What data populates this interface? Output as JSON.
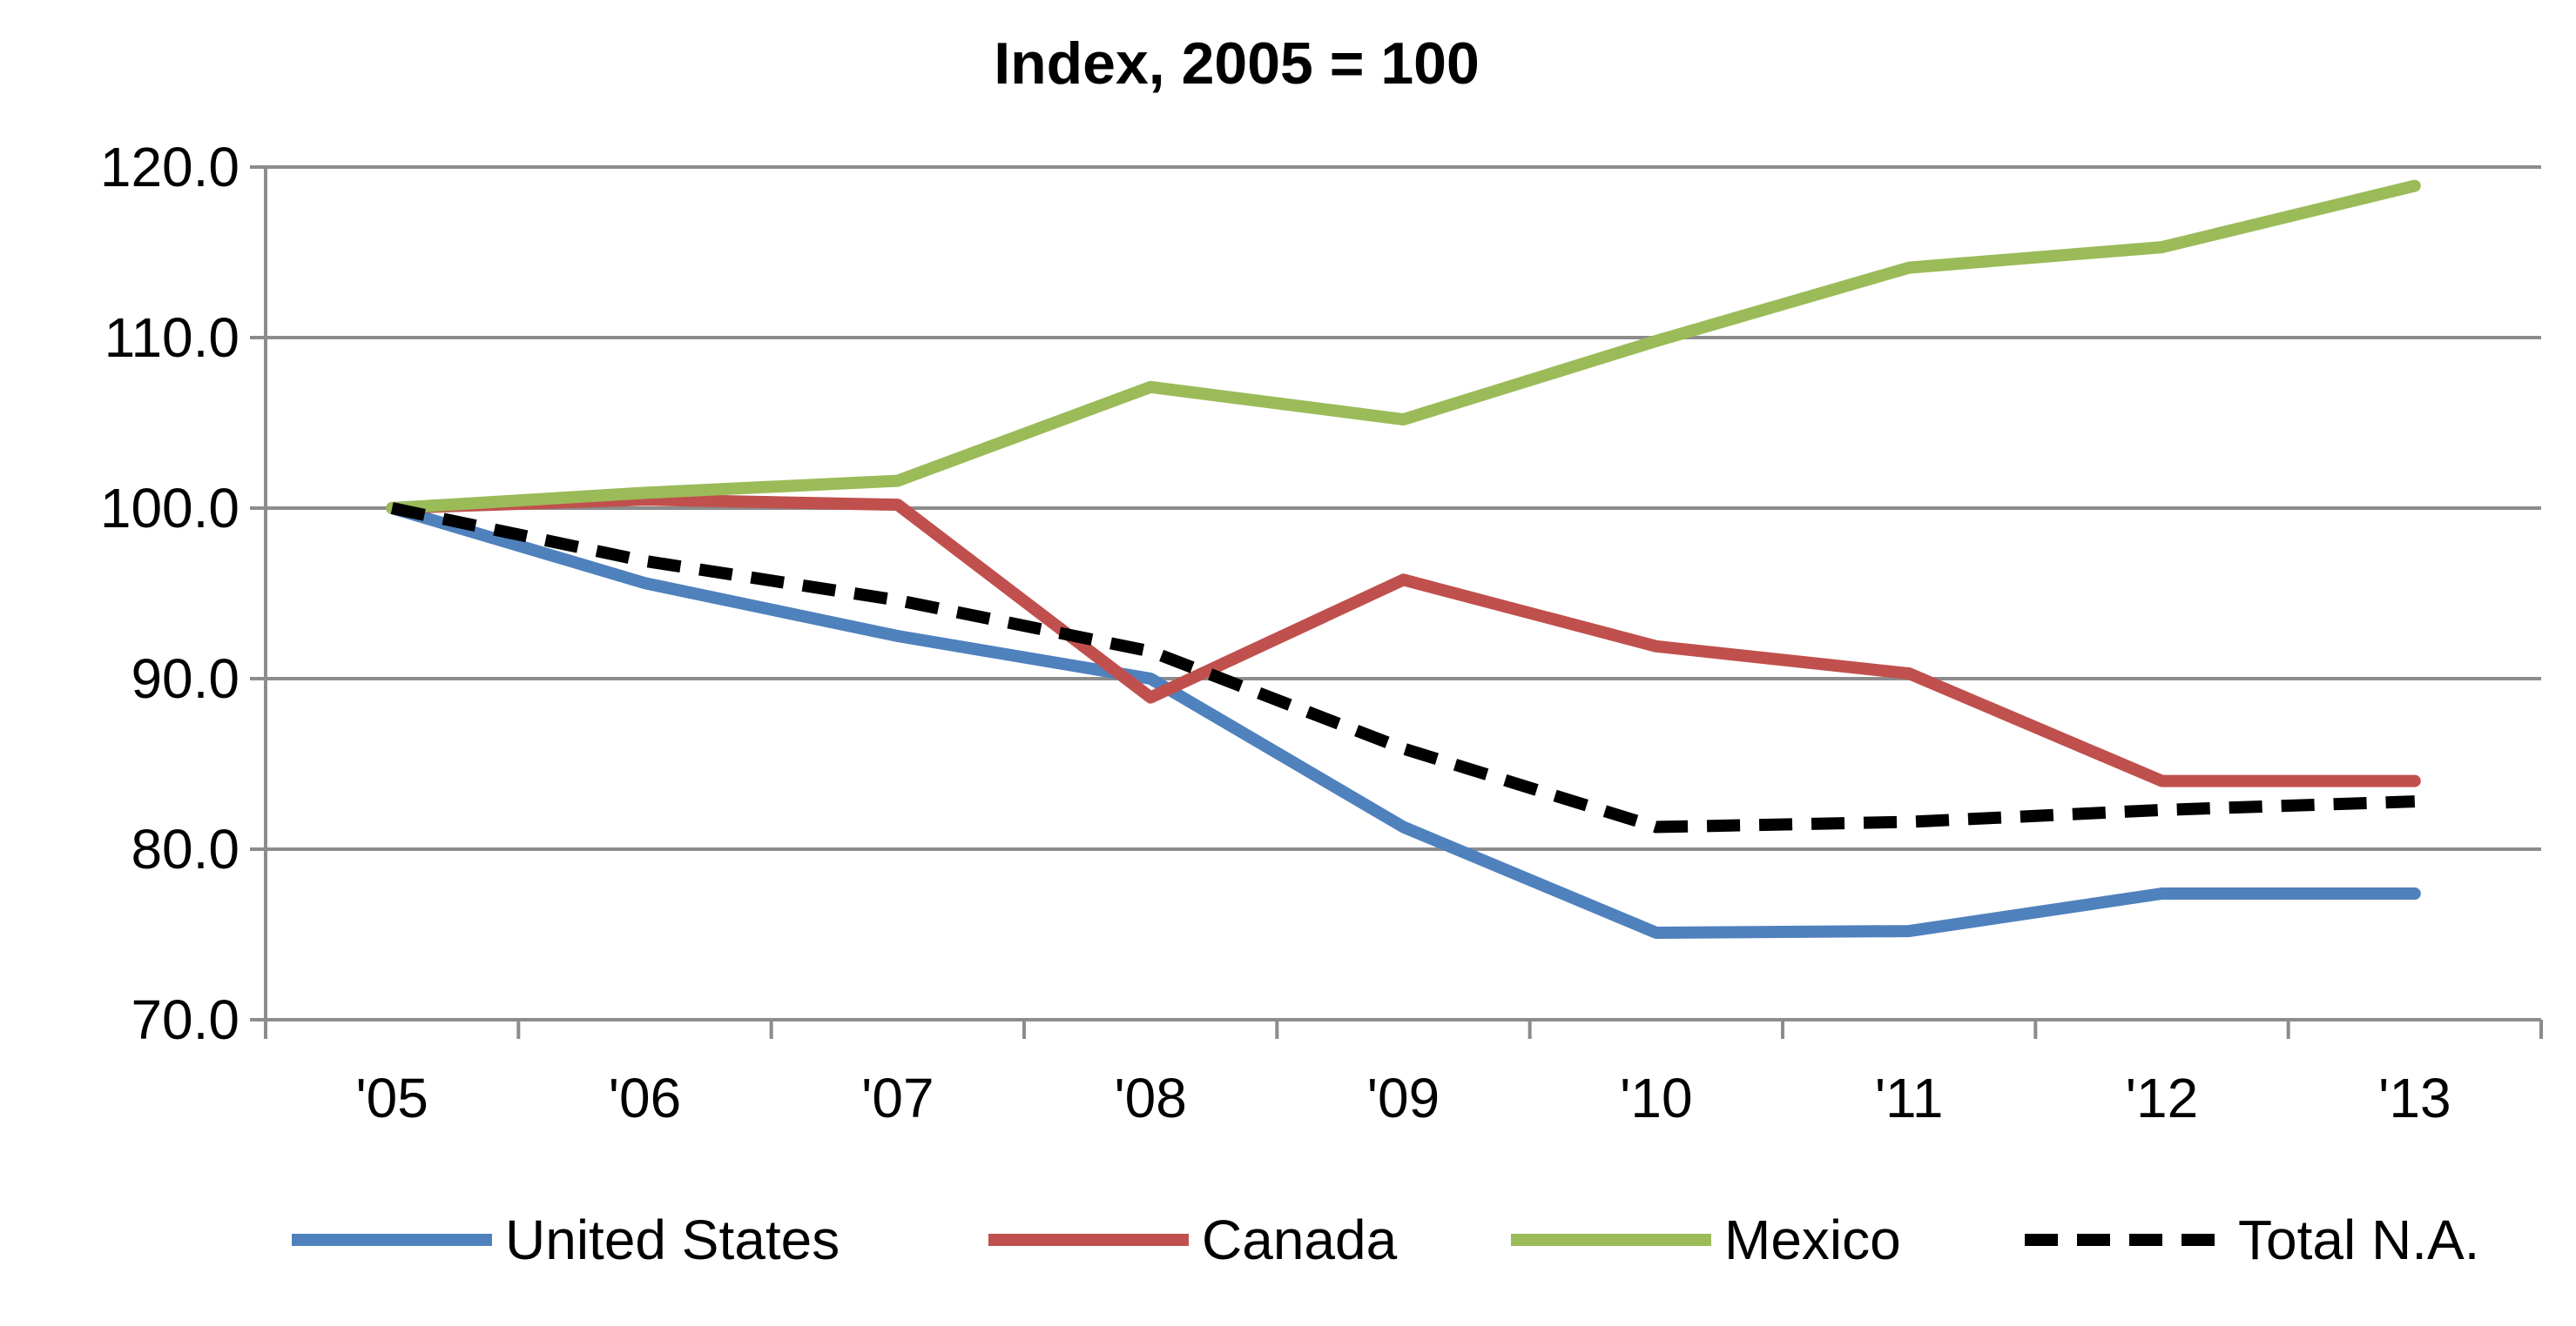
{
  "chart_data": {
    "type": "line",
    "title": "Index, 2005 = 100",
    "xlabel": "",
    "ylabel": "",
    "categories": [
      "'05",
      "'06",
      "'07",
      "'08",
      "'09",
      "'10",
      "'11",
      "'12",
      "'13"
    ],
    "ylim": [
      70,
      120
    ],
    "yticks": [
      "120.0",
      "110.0",
      "100.0",
      "90.0",
      "80.0",
      "70.0"
    ],
    "grid": true,
    "legend_position": "bottom",
    "series": [
      {
        "name": "United States",
        "color": "#4F81BD",
        "dash": "solid",
        "values": [
          100.0,
          95.6,
          92.5,
          90.0,
          81.3,
          75.1,
          75.2,
          77.4,
          77.4
        ]
      },
      {
        "name": "Canada",
        "color": "#C0504D",
        "dash": "solid",
        "values": [
          100.0,
          100.5,
          100.2,
          88.9,
          95.8,
          91.9,
          90.3,
          84.0,
          84.0
        ]
      },
      {
        "name": "Mexico",
        "color": "#9BBB59",
        "dash": "solid",
        "values": [
          100.0,
          100.9,
          101.6,
          107.1,
          105.2,
          109.8,
          114.1,
          115.3,
          118.9
        ]
      },
      {
        "name": "Total N.A.",
        "color": "#000000",
        "dash": "dashed",
        "values": [
          100.0,
          96.9,
          94.6,
          91.6,
          85.9,
          81.3,
          81.6,
          82.3,
          82.8
        ]
      }
    ]
  }
}
